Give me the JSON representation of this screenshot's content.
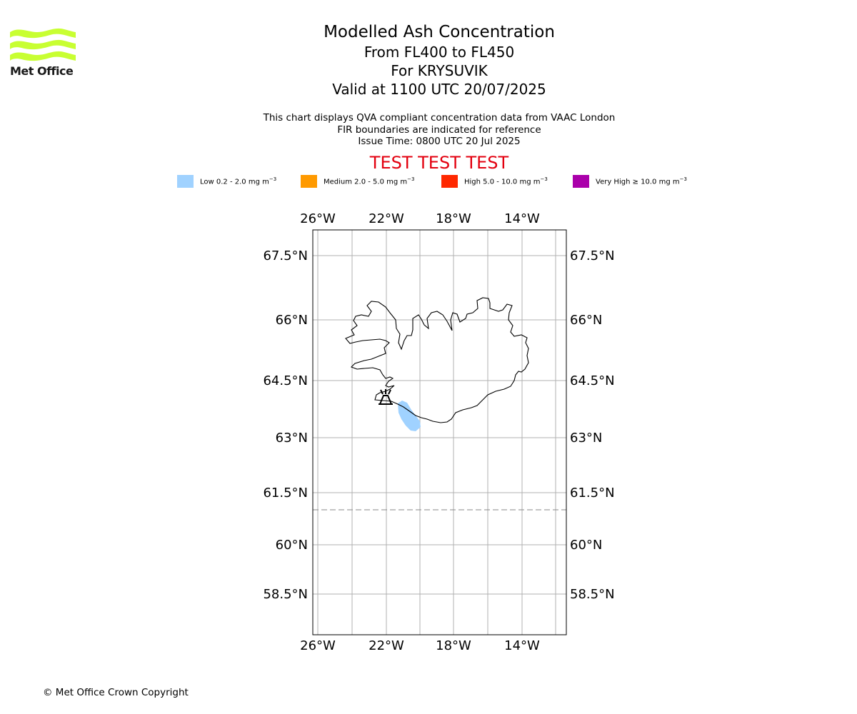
{
  "logo": {
    "text": "Met Office",
    "brand_color": "#c8ff32"
  },
  "title": {
    "line1": "Modelled Ash Concentration",
    "line2": "From FL400 to FL450",
    "line3": "For KRYSUVIK",
    "line4": "Valid at 1100 UTC 20/07/2025"
  },
  "subtitle": {
    "line1": "This chart displays QVA compliant concentration data from VAAC London",
    "line2": "FIR boundaries are indicated for reference",
    "line3": "Issue Time: 0800 UTC 20 Jul 2025"
  },
  "test_banner": {
    "text": "TEST TEST TEST",
    "color": "#e3000f"
  },
  "legend": [
    {
      "label": "Low 0.2 - 2.0 mg m",
      "unit_exp": "−3",
      "color": "#a0d2ff"
    },
    {
      "label": "Medium 2.0 - 5.0 mg m",
      "unit_exp": "−3",
      "color": "#ff9a00"
    },
    {
      "label": "High 5.0 - 10.0 mg m",
      "unit_exp": "−3",
      "color": "#ff2800"
    },
    {
      "label": "Very High ≥ 10.0 mg m",
      "unit_exp": "−3",
      "color": "#aa00aa"
    }
  ],
  "map": {
    "lon_labels": [
      "26°W",
      "22°W",
      "18°W",
      "14°W"
    ],
    "lat_labels": [
      "67.5°N",
      "66°N",
      "64.5°N",
      "63°N",
      "61.5°N",
      "60°N",
      "58.5°N"
    ],
    "volcano": "KRYSUVIK",
    "volcano_icon": "volcano-icon",
    "ash_levels_shown": [
      "Low"
    ]
  },
  "copyright": "© Met Office Crown Copyright"
}
